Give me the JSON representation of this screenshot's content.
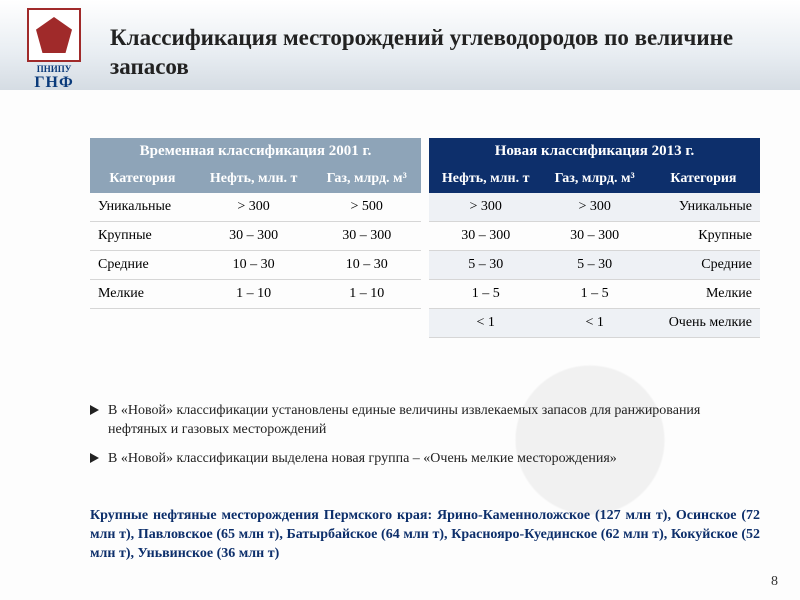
{
  "logo": {
    "line1": "ПНИПУ",
    "line2": "ГНФ"
  },
  "title": "Классификация месторождений углеводородов по величине запасов",
  "tables": {
    "old": {
      "caption": "Временная классификация 2001 г.",
      "headers": [
        "Категория",
        "Нефть, млн. т",
        "Газ, млрд. м³"
      ],
      "rows": [
        [
          "Уникальные",
          "> 300",
          "> 500"
        ],
        [
          "Крупные",
          "30 – 300",
          "30 – 300"
        ],
        [
          "Средние",
          "10 – 30",
          "10 – 30"
        ],
        [
          "Мелкие",
          "1 – 10",
          "1 – 10"
        ]
      ]
    },
    "new": {
      "caption": "Новая классификация 2013 г.",
      "headers": [
        "Нефть, млн. т",
        "Газ, млрд. м³",
        "Категория"
      ],
      "rows": [
        [
          "> 300",
          "> 300",
          "Уникальные"
        ],
        [
          "30 – 300",
          "30 – 300",
          "Крупные"
        ],
        [
          "5 – 30",
          "5 – 30",
          "Средние"
        ],
        [
          "1 – 5",
          "1 – 5",
          "Мелкие"
        ],
        [
          "< 1",
          "< 1",
          "Очень мелкие"
        ]
      ]
    }
  },
  "bullets": [
    "В «Новой» классификации установлены единые величины извлекаемых запасов для ранжирования нефтяных и газовых месторождений",
    "В «Новой» классификации выделена новая группа – «Очень мелкие месторождения»"
  ],
  "footer": "Крупные нефтяные месторождения Пермского края: Ярино-Каменноложское (127 млн т), Осинское (72 млн т), Павловское (65 млн т), Батырбайское (64 млн т), Краснояро-Куединское (62 млн т), Кокуйское (52 млн т), Уньвинское (36 млн т)",
  "page": "8",
  "colors": {
    "brand_dark": "#0d2f6b",
    "brand_muted": "#8ea4b8",
    "logo_red": "#a02a2a"
  }
}
